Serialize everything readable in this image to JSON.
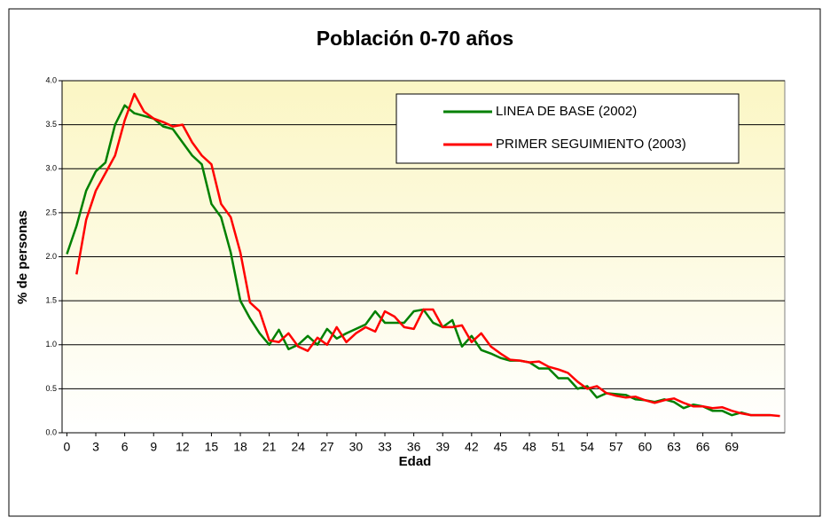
{
  "chart_data": {
    "type": "line",
    "title": "Población 0-70 años",
    "x_label": "Edad",
    "y_label": "% de personas",
    "categories": [
      "0",
      null,
      null,
      "3",
      null,
      null,
      "6",
      null,
      null,
      "9",
      null,
      null,
      "12",
      null,
      null,
      "15",
      null,
      null,
      "18",
      null,
      null,
      "21",
      null,
      null,
      "24",
      null,
      null,
      "27",
      null,
      null,
      "30",
      null,
      null,
      "33",
      null,
      null,
      "36",
      null,
      null,
      "39",
      null,
      null,
      "42",
      null,
      null,
      "45",
      null,
      null,
      "48",
      null,
      null,
      "51",
      null,
      null,
      "54",
      null,
      null,
      "57",
      null,
      null,
      "60",
      null,
      null,
      "63",
      null,
      null,
      "66",
      null,
      null,
      "69",
      null,
      null,
      null,
      null,
      null
    ],
    "series": [
      {
        "name": "LINEA DE BASE (2002)",
        "color": "#008000",
        "values": [
          2.03,
          2.35,
          2.75,
          2.97,
          3.07,
          3.5,
          3.72,
          3.63,
          3.6,
          3.57,
          3.48,
          3.45,
          3.3,
          3.15,
          3.05,
          2.6,
          2.45,
          2.05,
          1.5,
          1.3,
          1.13,
          1.0,
          1.17,
          0.95,
          1.0,
          1.1,
          1.0,
          1.18,
          1.07,
          1.13,
          1.18,
          1.23,
          1.38,
          1.25,
          1.25,
          1.25,
          1.38,
          1.4,
          1.25,
          1.2,
          1.28,
          0.98,
          1.1,
          0.94,
          0.9,
          0.85,
          0.82,
          0.82,
          0.8,
          0.73,
          0.73,
          0.62,
          0.62,
          0.5,
          0.53,
          0.4,
          0.45,
          0.44,
          0.43,
          0.38,
          0.37,
          0.35,
          0.38,
          0.35,
          0.28,
          0.32,
          0.3,
          0.25,
          0.25,
          0.2,
          0.23,
          0.2,
          0.2,
          0.2,
          null
        ]
      },
      {
        "name": "PRIMER SEGUIMIENTO (2003)",
        "color": "#ff0000",
        "values": [
          null,
          1.8,
          2.42,
          2.75,
          2.95,
          3.15,
          3.55,
          3.85,
          3.65,
          3.57,
          3.53,
          3.48,
          3.5,
          3.3,
          3.15,
          3.05,
          2.6,
          2.45,
          2.05,
          1.48,
          1.38,
          1.05,
          1.03,
          1.13,
          0.98,
          0.93,
          1.08,
          1.0,
          1.2,
          1.03,
          1.13,
          1.2,
          1.15,
          1.38,
          1.32,
          1.2,
          1.18,
          1.4,
          1.4,
          1.2,
          1.2,
          1.22,
          1.03,
          1.13,
          0.98,
          0.9,
          0.83,
          0.82,
          0.8,
          0.81,
          0.75,
          0.72,
          0.68,
          0.58,
          0.5,
          0.53,
          0.45,
          0.42,
          0.4,
          0.41,
          0.37,
          0.34,
          0.37,
          0.39,
          0.34,
          0.3,
          0.3,
          0.28,
          0.29,
          0.25,
          0.22,
          0.2,
          0.2,
          0.2,
          0.19
        ]
      }
    ],
    "ylim": [
      0,
      4
    ],
    "yticks": [
      {
        "value": 0,
        "label": "0.0"
      },
      0.5,
      {
        "value": 1,
        "label": "1.0"
      },
      1.5,
      {
        "value": 2,
        "label": "2.0"
      },
      2.5,
      {
        "value": 3,
        "label": "3.0"
      },
      3.5,
      {
        "value": 4,
        "label": "4.0"
      }
    ],
    "grid": true,
    "legend": "upper right"
  }
}
